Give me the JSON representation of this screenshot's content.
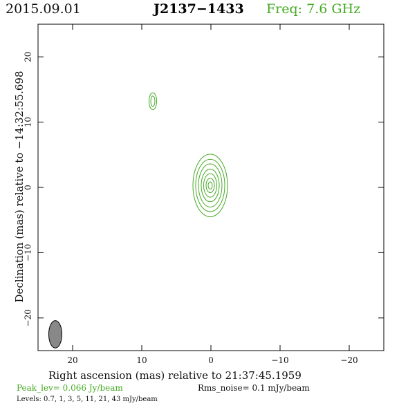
{
  "header": {
    "date": "2015.09.01",
    "source": "J2137−1433",
    "frequency": "Freq: 7.6 GHz"
  },
  "footer": {
    "peak": "Peak_lev=  0.066 Jy/beam",
    "rms": "Rms_noise=   0.1 mJy/beam",
    "levels": "Levels: 0.7,    1,    3,    5,   11,   21,   43  mJy/beam"
  },
  "colors": {
    "contour": "#44aa22",
    "beam_fill": "#888888",
    "axis": "#000000"
  },
  "chart_data": {
    "type": "contour",
    "xlabel": "Right ascension (mas) relative to 21:37:45.1959",
    "ylabel": "Declination (mas) relative to −14:32:55.698",
    "xlim": [
      25,
      -25
    ],
    "ylim": [
      -25,
      25
    ],
    "xticks": [
      20,
      10,
      0,
      -10,
      -20
    ],
    "yticks": [
      -20,
      -10,
      0,
      10,
      20
    ],
    "xtick_labels": [
      "20",
      "10",
      "0",
      "−10",
      "−20"
    ],
    "ytick_labels": [
      "−20",
      "−10",
      "0",
      "10",
      "20"
    ],
    "contour_levels_mJy": [
      0.7,
      1,
      3,
      5,
      11,
      21,
      43
    ],
    "peak_Jy_per_beam": 0.066,
    "rms_mJy_per_beam": 0.1,
    "components": [
      {
        "x": 0.1,
        "y": 0.3,
        "contours": [
          {
            "rx": 2.5,
            "ry": 4.8
          },
          {
            "rx": 2.1,
            "ry": 4.0
          },
          {
            "rx": 1.7,
            "ry": 3.3
          },
          {
            "rx": 1.3,
            "ry": 2.5
          },
          {
            "rx": 0.95,
            "ry": 1.8
          },
          {
            "rx": 0.6,
            "ry": 1.1
          },
          {
            "rx": 0.3,
            "ry": 0.55
          }
        ]
      },
      {
        "x": 8.4,
        "y": 13.2,
        "contours": [
          {
            "rx": 0.55,
            "ry": 1.3
          },
          {
            "rx": 0.3,
            "ry": 0.8
          }
        ]
      }
    ],
    "beam": {
      "x": 22.5,
      "y": -22.5,
      "major": 4.2,
      "minor": 1.9,
      "pa": 0
    }
  }
}
